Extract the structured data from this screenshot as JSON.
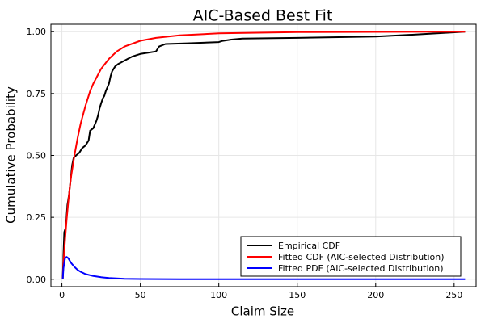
{
  "chart_data": {
    "type": "line",
    "title": "AIC-Based Best Fit",
    "xlabel": "Claim Size",
    "ylabel": "Cumulative Probability",
    "xlim": [
      -7,
      264
    ],
    "ylim": [
      -0.03,
      1.03
    ],
    "x_ticks": [
      0,
      50,
      100,
      150,
      200,
      250
    ],
    "y_ticks": [
      0.0,
      0.25,
      0.5,
      0.75,
      1.0
    ],
    "x_tick_labels": [
      "0",
      "50",
      "100",
      "150",
      "200",
      "250"
    ],
    "y_tick_labels": [
      "0.00",
      "0.25",
      "0.50",
      "0.75",
      "1.00"
    ],
    "grid": true,
    "legend_position": "bottom-right",
    "series": [
      {
        "name": "Empirical CDF",
        "color": "#000000",
        "points": [
          [
            0.5,
            0.0
          ],
          [
            1.0,
            0.1
          ],
          [
            1.5,
            0.19
          ],
          [
            2.5,
            0.21
          ],
          [
            3.5,
            0.3
          ],
          [
            4.5,
            0.34
          ],
          [
            5.5,
            0.4
          ],
          [
            6.5,
            0.46
          ],
          [
            7.5,
            0.49
          ],
          [
            9,
            0.5
          ],
          [
            11,
            0.51
          ],
          [
            13,
            0.53
          ],
          [
            15,
            0.54
          ],
          [
            17,
            0.56
          ],
          [
            18,
            0.6
          ],
          [
            20,
            0.61
          ],
          [
            22,
            0.64
          ],
          [
            23,
            0.66
          ],
          [
            24,
            0.69
          ],
          [
            25,
            0.71
          ],
          [
            26,
            0.73
          ],
          [
            27,
            0.74
          ],
          [
            28,
            0.76
          ],
          [
            30,
            0.79
          ],
          [
            31,
            0.82
          ],
          [
            32,
            0.84
          ],
          [
            33,
            0.85
          ],
          [
            34,
            0.86
          ],
          [
            36,
            0.87
          ],
          [
            39,
            0.88
          ],
          [
            42,
            0.89
          ],
          [
            45,
            0.9
          ],
          [
            50,
            0.91
          ],
          [
            55,
            0.915
          ],
          [
            60,
            0.92
          ],
          [
            62,
            0.94
          ],
          [
            66,
            0.95
          ],
          [
            80,
            0.953
          ],
          [
            100,
            0.958
          ],
          [
            102,
            0.962
          ],
          [
            108,
            0.968
          ],
          [
            115,
            0.972
          ],
          [
            150,
            0.975
          ],
          [
            200,
            0.98
          ],
          [
            230,
            0.99
          ],
          [
            257,
            1.0
          ]
        ]
      },
      {
        "name": "Fitted CDF (AIC-selected Distribution)",
        "color": "#ff0000",
        "points": [
          [
            0.5,
            0.0
          ],
          [
            1,
            0.07
          ],
          [
            2,
            0.16
          ],
          [
            3,
            0.24
          ],
          [
            4,
            0.31
          ],
          [
            5,
            0.37
          ],
          [
            6,
            0.42
          ],
          [
            8,
            0.5
          ],
          [
            10,
            0.57
          ],
          [
            12,
            0.63
          ],
          [
            15,
            0.7
          ],
          [
            18,
            0.76
          ],
          [
            20,
            0.79
          ],
          [
            25,
            0.85
          ],
          [
            30,
            0.89
          ],
          [
            35,
            0.92
          ],
          [
            40,
            0.94
          ],
          [
            50,
            0.963
          ],
          [
            60,
            0.975
          ],
          [
            75,
            0.985
          ],
          [
            100,
            0.993
          ],
          [
            150,
            0.998
          ],
          [
            200,
            0.999
          ],
          [
            257,
            1.0
          ]
        ]
      },
      {
        "name": "Fitted PDF (AIC-selected Distribution)",
        "color": "#0000ff",
        "points": [
          [
            0.5,
            0.0
          ],
          [
            1,
            0.045
          ],
          [
            2,
            0.085
          ],
          [
            3,
            0.09
          ],
          [
            4,
            0.085
          ],
          [
            5,
            0.075
          ],
          [
            6,
            0.065
          ],
          [
            8,
            0.05
          ],
          [
            10,
            0.038
          ],
          [
            12,
            0.03
          ],
          [
            15,
            0.021
          ],
          [
            20,
            0.013
          ],
          [
            25,
            0.008
          ],
          [
            30,
            0.005
          ],
          [
            40,
            0.002
          ],
          [
            50,
            0.001
          ],
          [
            75,
            0.0003
          ],
          [
            100,
            0.0
          ],
          [
            257,
            0.0
          ]
        ]
      }
    ]
  }
}
